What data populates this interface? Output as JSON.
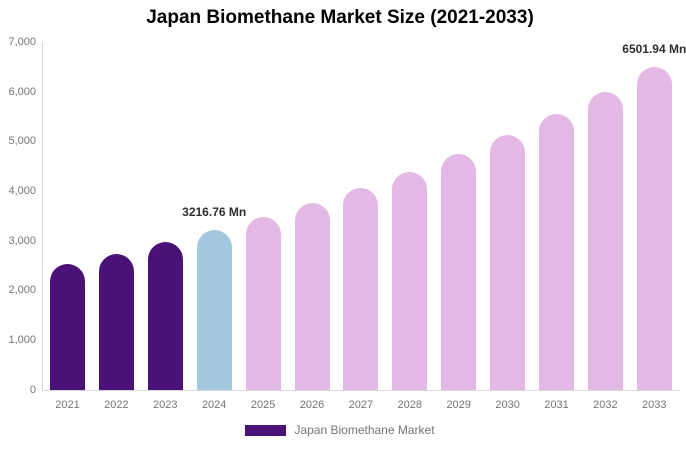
{
  "title": "Japan Biomethane Market Size (2021-2033)",
  "legend": {
    "label": "Japan Biomethane Market",
    "swatch_color": "#4a1276"
  },
  "colors": {
    "historical_bar": "#4a1276",
    "current_year_bar": "#a2c9de",
    "forecast_bar": "#e4b8e4",
    "axis_line": "#d9d9d9",
    "axis_text": "#757575",
    "data_label_text": "#2f2f2f",
    "title_text": "#000000",
    "background": "#ffffff"
  },
  "y_axis": {
    "tick_labels": [
      "0",
      "1,000",
      "2,000",
      "3,000",
      "4,000",
      "5,000",
      "6,000",
      "7,000"
    ],
    "tick_values": [
      0,
      1000,
      2000,
      3000,
      4000,
      5000,
      6000,
      7000
    ]
  },
  "chart_data": {
    "type": "bar",
    "title": "Japan Biomethane Market Size (2021-2033)",
    "categories": [
      "2021",
      "2022",
      "2023",
      "2024",
      "2025",
      "2026",
      "2027",
      "2028",
      "2029",
      "2030",
      "2031",
      "2032",
      "2033"
    ],
    "values": [
      2544,
      2751,
      2975,
      3216.76,
      3478,
      3761,
      4067,
      4398,
      4756,
      5143,
      5561,
      6013,
      6501.94
    ],
    "unit": "Mn",
    "xlabel": "",
    "ylabel": "",
    "ylim": [
      0,
      7000
    ],
    "grid": false,
    "legend": [
      "Japan Biomethane Market"
    ],
    "legend_position": "bottom",
    "bar_colors": [
      "#4a1276",
      "#4a1276",
      "#4a1276",
      "#a2c9de",
      "#e4b8e4",
      "#e4b8e4",
      "#e4b8e4",
      "#e4b8e4",
      "#e4b8e4",
      "#e4b8e4",
      "#e4b8e4",
      "#e4b8e4",
      "#e4b8e4"
    ],
    "annotations": [
      {
        "category": "2024",
        "text": "3216.76 Mn"
      },
      {
        "category": "2033",
        "text": "6501.94 Mn"
      }
    ]
  }
}
